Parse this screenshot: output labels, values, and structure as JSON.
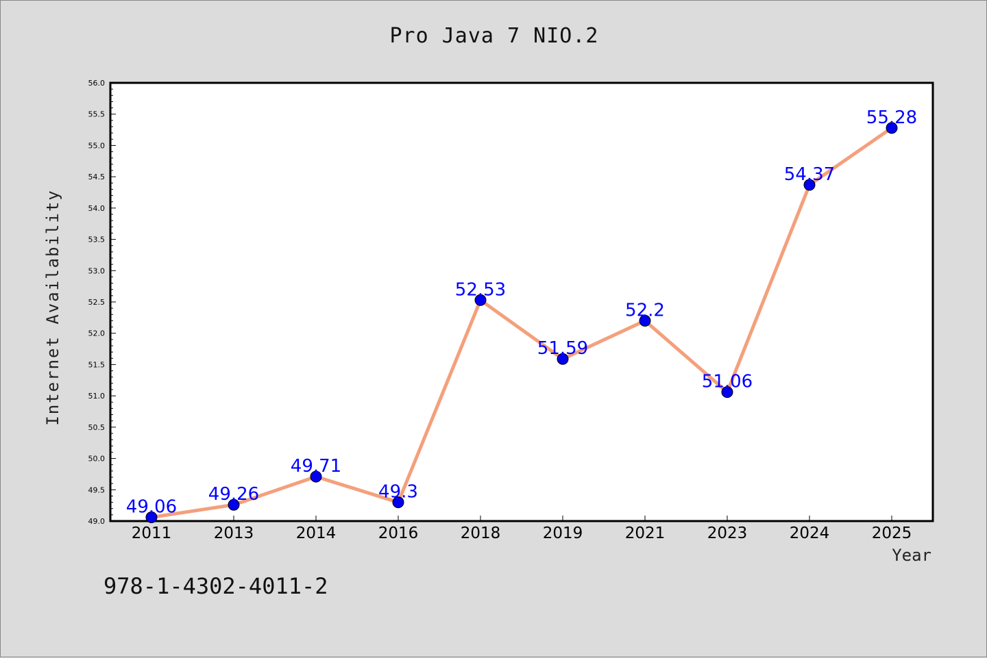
{
  "chart_data": {
    "type": "line",
    "title": "Pro Java 7 NIO.2",
    "xlabel": "Year",
    "ylabel": "Internet Availability",
    "categories": [
      "2011",
      "2013",
      "2014",
      "2016",
      "2018",
      "2019",
      "2021",
      "2023",
      "2024",
      "2025"
    ],
    "series": [
      {
        "values": [
          49.06,
          49.26,
          49.71,
          49.3,
          52.53,
          51.59,
          52.2,
          51.06,
          54.37,
          55.28
        ]
      }
    ],
    "data_labels": [
      "49.06",
      "49.26",
      "49.71",
      "49.3",
      "52.53",
      "51.59",
      "52.2",
      "51.06",
      "54.37",
      "55.28"
    ],
    "ylim": [
      49.0,
      56.0
    ],
    "yticks": [
      "49.0",
      "49.5",
      "50.0",
      "50.5",
      "51.0",
      "51.5",
      "52.0",
      "52.5",
      "53.0",
      "53.5",
      "54.0",
      "54.5",
      "55.0",
      "55.5",
      "56.0"
    ],
    "grid": false,
    "legend": "none",
    "colors": {
      "line": "#f4a07c",
      "marker": "#0000ee",
      "label": "#0000ff",
      "plot_bg": "#ffffff",
      "page_bg": "#dcdcdc"
    }
  },
  "footnote": "978-1-4302-4011-2"
}
